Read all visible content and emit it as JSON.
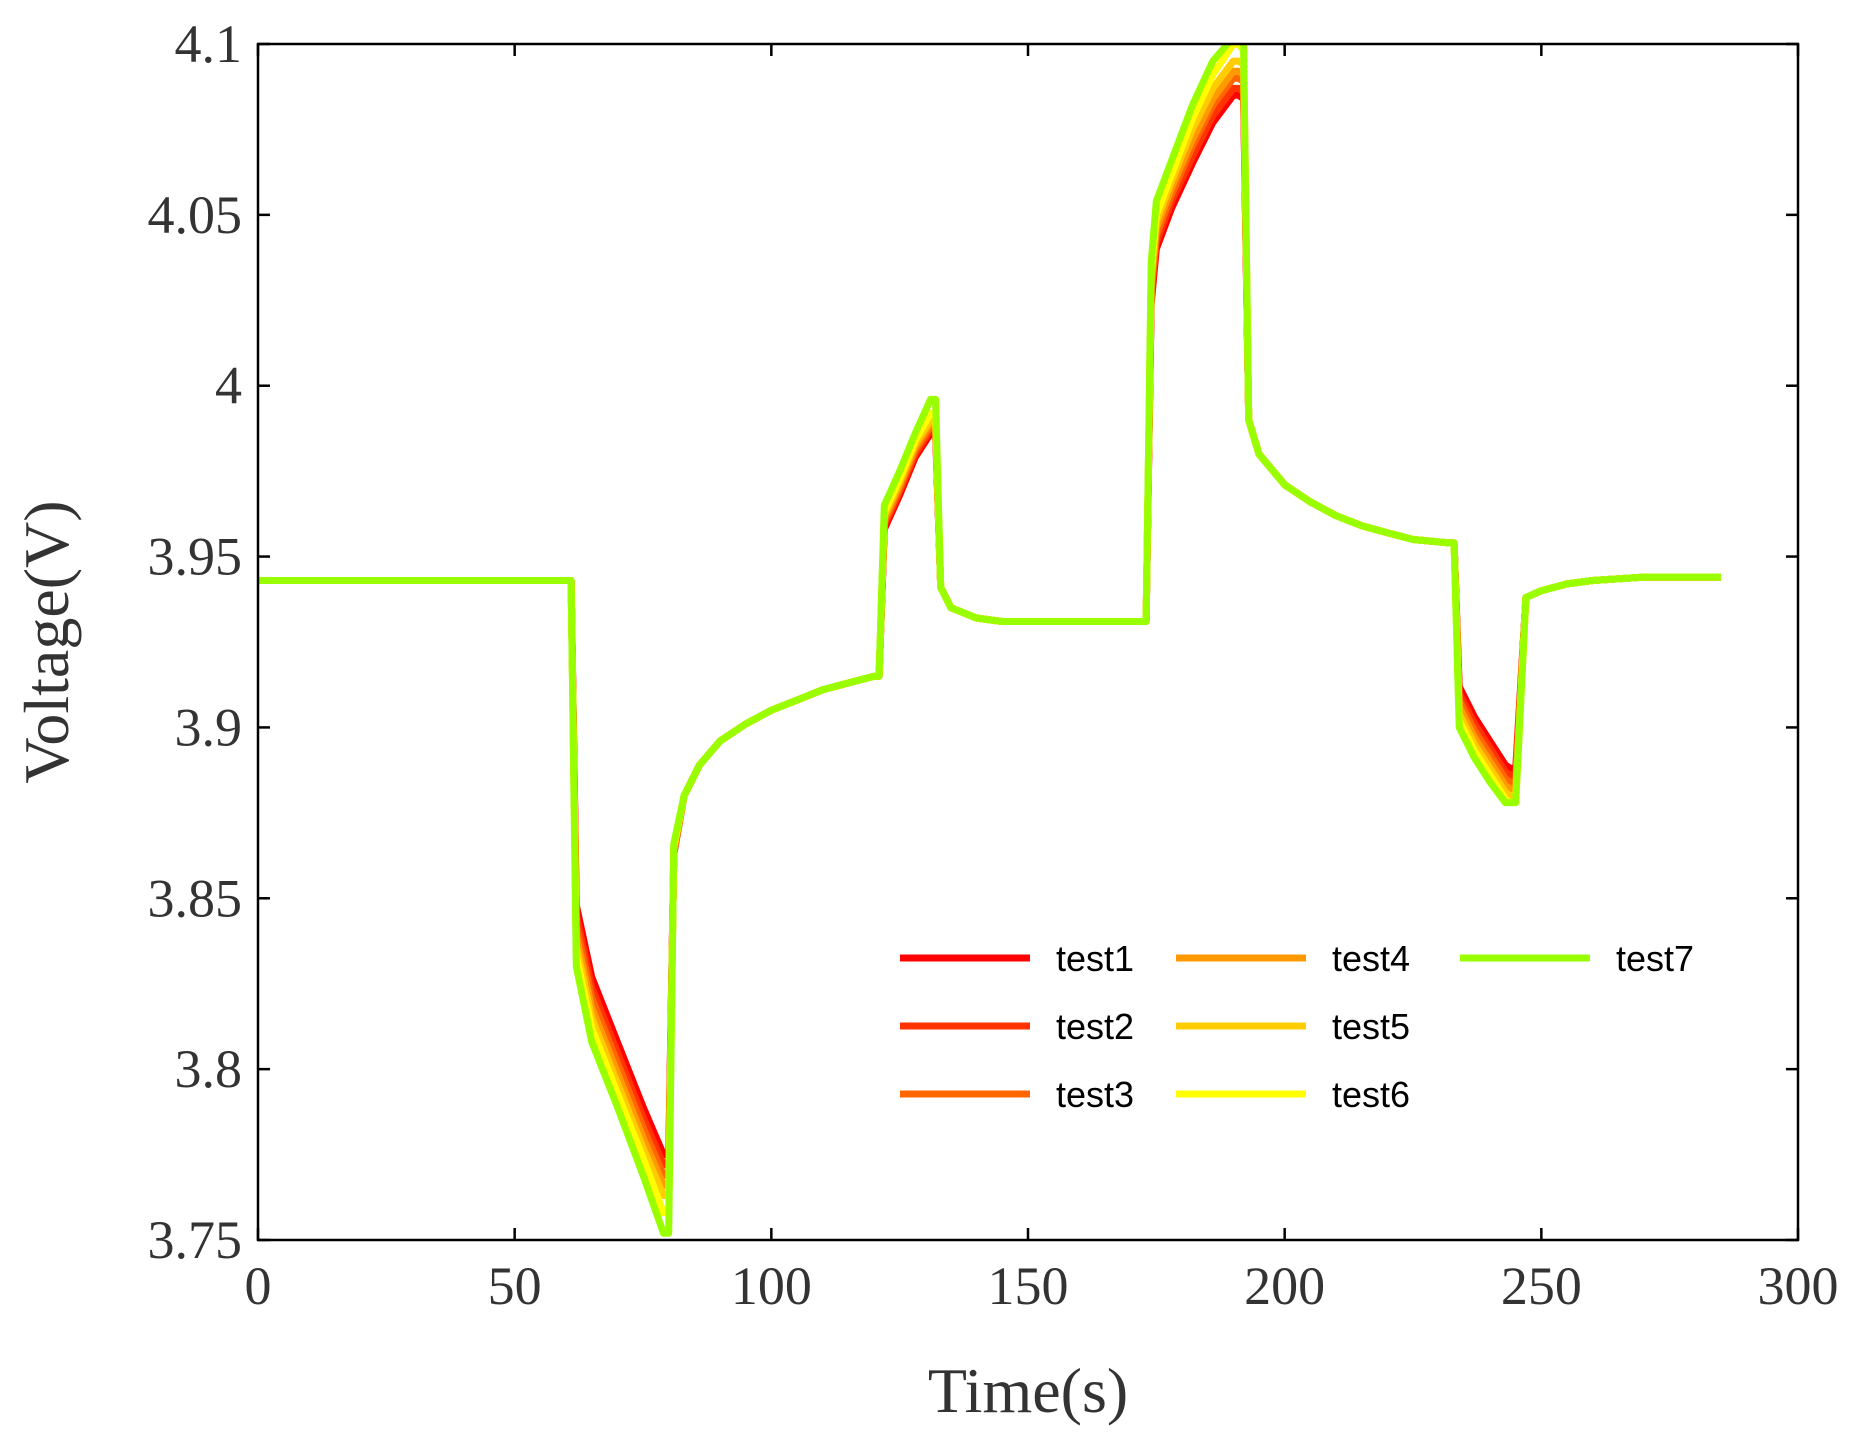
{
  "chart_data": {
    "type": "line",
    "title": "",
    "xlabel": "Time(s)",
    "ylabel": "Voltage(V)",
    "xlim": [
      0,
      300
    ],
    "ylim": [
      3.75,
      4.1
    ],
    "xticks": [
      "0",
      "50",
      "100",
      "150",
      "200",
      "250",
      "300"
    ],
    "yticks": [
      "3.75",
      "3.8",
      "3.85",
      "3.9",
      "3.95",
      "4",
      "4.05",
      "4.1"
    ],
    "grid": false,
    "legend": {
      "placement": "lower-right",
      "columns": 3
    },
    "x": [
      0,
      20,
      40,
      61,
      62,
      65,
      70,
      75,
      79,
      80,
      81,
      83,
      86,
      90,
      95,
      100,
      105,
      110,
      115,
      120,
      121,
      122,
      125,
      128,
      131,
      132,
      133,
      135,
      140,
      145,
      150,
      155,
      160,
      165,
      172,
      173,
      174,
      175,
      178,
      182,
      186,
      190,
      191,
      192,
      193,
      195,
      200,
      205,
      210,
      215,
      220,
      225,
      232,
      233,
      234,
      237,
      240,
      243,
      244,
      245,
      247,
      250,
      255,
      260,
      270,
      285
    ],
    "series": [
      {
        "name": "test1",
        "color": "#ff0000",
        "values": [
          3.943,
          3.943,
          3.943,
          3.943,
          3.848,
          3.827,
          3.808,
          3.789,
          3.775,
          3.775,
          3.863,
          3.88,
          3.889,
          3.896,
          3.901,
          3.905,
          3.908,
          3.911,
          3.913,
          3.915,
          3.915,
          3.958,
          3.968,
          3.979,
          3.986,
          3.986,
          3.941,
          3.935,
          3.932,
          3.931,
          3.931,
          3.931,
          3.931,
          3.931,
          3.931,
          3.931,
          4.024,
          4.04,
          4.052,
          4.065,
          4.077,
          4.085,
          4.085,
          4.084,
          3.99,
          3.98,
          3.971,
          3.966,
          3.962,
          3.959,
          3.957,
          3.955,
          3.954,
          3.954,
          3.912,
          3.903,
          3.896,
          3.889,
          3.888,
          3.888,
          3.938,
          3.94,
          3.942,
          3.943,
          3.944,
          3.944
        ]
      },
      {
        "name": "test2",
        "color": "#ff3300",
        "values": [
          3.943,
          3.943,
          3.943,
          3.943,
          3.845,
          3.824,
          3.805,
          3.786,
          3.772,
          3.772,
          3.863,
          3.88,
          3.889,
          3.896,
          3.901,
          3.905,
          3.908,
          3.911,
          3.913,
          3.915,
          3.915,
          3.959,
          3.969,
          3.98,
          3.987,
          3.987,
          3.941,
          3.935,
          3.932,
          3.931,
          3.931,
          3.931,
          3.931,
          3.931,
          3.931,
          3.931,
          4.026,
          4.042,
          4.054,
          4.067,
          4.079,
          4.087,
          4.087,
          4.086,
          3.99,
          3.98,
          3.971,
          3.966,
          3.962,
          3.959,
          3.957,
          3.955,
          3.954,
          3.954,
          3.91,
          3.901,
          3.894,
          3.887,
          3.886,
          3.886,
          3.938,
          3.94,
          3.942,
          3.943,
          3.944,
          3.944
        ]
      },
      {
        "name": "test3",
        "color": "#ff6600",
        "values": [
          3.943,
          3.943,
          3.943,
          3.943,
          3.842,
          3.821,
          3.802,
          3.783,
          3.769,
          3.769,
          3.864,
          3.88,
          3.889,
          3.896,
          3.901,
          3.905,
          3.908,
          3.911,
          3.913,
          3.915,
          3.915,
          3.96,
          3.97,
          3.981,
          3.988,
          3.988,
          3.941,
          3.935,
          3.932,
          3.931,
          3.931,
          3.931,
          3.931,
          3.931,
          3.931,
          3.931,
          4.028,
          4.044,
          4.056,
          4.07,
          4.082,
          4.09,
          4.09,
          4.089,
          3.99,
          3.98,
          3.971,
          3.966,
          3.962,
          3.959,
          3.957,
          3.955,
          3.954,
          3.954,
          3.908,
          3.899,
          3.892,
          3.885,
          3.884,
          3.884,
          3.938,
          3.94,
          3.942,
          3.943,
          3.944,
          3.944
        ]
      },
      {
        "name": "test4",
        "color": "#ff9900",
        "values": [
          3.943,
          3.943,
          3.943,
          3.943,
          3.839,
          3.818,
          3.799,
          3.78,
          3.766,
          3.766,
          3.864,
          3.88,
          3.889,
          3.896,
          3.901,
          3.905,
          3.908,
          3.911,
          3.913,
          3.915,
          3.915,
          3.961,
          3.971,
          3.982,
          3.989,
          3.989,
          3.941,
          3.935,
          3.932,
          3.931,
          3.931,
          3.931,
          3.931,
          3.931,
          3.931,
          3.931,
          4.03,
          4.046,
          4.058,
          4.072,
          4.084,
          4.092,
          4.092,
          4.091,
          3.99,
          3.98,
          3.971,
          3.966,
          3.962,
          3.959,
          3.957,
          3.955,
          3.954,
          3.954,
          3.906,
          3.897,
          3.89,
          3.883,
          3.882,
          3.882,
          3.938,
          3.94,
          3.942,
          3.943,
          3.944,
          3.944
        ]
      },
      {
        "name": "test5",
        "color": "#ffcc00",
        "values": [
          3.943,
          3.943,
          3.943,
          3.943,
          3.836,
          3.815,
          3.796,
          3.777,
          3.763,
          3.763,
          3.865,
          3.88,
          3.889,
          3.896,
          3.901,
          3.905,
          3.908,
          3.911,
          3.913,
          3.915,
          3.915,
          3.962,
          3.972,
          3.983,
          3.99,
          3.99,
          3.941,
          3.935,
          3.932,
          3.931,
          3.931,
          3.931,
          3.931,
          3.931,
          3.931,
          3.931,
          4.032,
          4.048,
          4.06,
          4.075,
          4.087,
          4.095,
          4.095,
          4.094,
          3.99,
          3.98,
          3.971,
          3.966,
          3.962,
          3.959,
          3.957,
          3.955,
          3.954,
          3.954,
          3.904,
          3.895,
          3.888,
          3.881,
          3.88,
          3.88,
          3.938,
          3.94,
          3.942,
          3.943,
          3.944,
          3.944
        ]
      },
      {
        "name": "test6",
        "color": "#ffff00",
        "values": [
          3.943,
          3.943,
          3.943,
          3.943,
          3.833,
          3.812,
          3.793,
          3.774,
          3.758,
          3.758,
          3.865,
          3.88,
          3.889,
          3.896,
          3.901,
          3.905,
          3.908,
          3.911,
          3.913,
          3.915,
          3.915,
          3.963,
          3.973,
          3.984,
          3.992,
          3.992,
          3.941,
          3.935,
          3.932,
          3.931,
          3.931,
          3.931,
          3.931,
          3.931,
          3.931,
          3.931,
          4.034,
          4.05,
          4.062,
          4.078,
          4.091,
          4.1,
          4.1,
          4.098,
          3.99,
          3.98,
          3.971,
          3.966,
          3.962,
          3.959,
          3.957,
          3.955,
          3.954,
          3.954,
          3.902,
          3.893,
          3.886,
          3.879,
          3.878,
          3.878,
          3.938,
          3.94,
          3.942,
          3.943,
          3.944,
          3.944
        ]
      },
      {
        "name": "test7",
        "color": "#99ff00",
        "values": [
          3.943,
          3.943,
          3.943,
          3.943,
          3.83,
          3.808,
          3.789,
          3.769,
          3.752,
          3.752,
          3.866,
          3.88,
          3.889,
          3.896,
          3.901,
          3.905,
          3.908,
          3.911,
          3.913,
          3.915,
          3.915,
          3.965,
          3.975,
          3.986,
          3.996,
          3.996,
          3.941,
          3.935,
          3.932,
          3.931,
          3.931,
          3.931,
          3.931,
          3.931,
          3.931,
          3.931,
          4.036,
          4.054,
          4.066,
          4.082,
          4.095,
          4.102,
          4.102,
          4.1,
          3.99,
          3.98,
          3.971,
          3.966,
          3.962,
          3.959,
          3.957,
          3.955,
          3.954,
          3.954,
          3.9,
          3.891,
          3.884,
          3.878,
          3.878,
          3.878,
          3.938,
          3.94,
          3.942,
          3.943,
          3.944,
          3.944
        ]
      }
    ]
  }
}
